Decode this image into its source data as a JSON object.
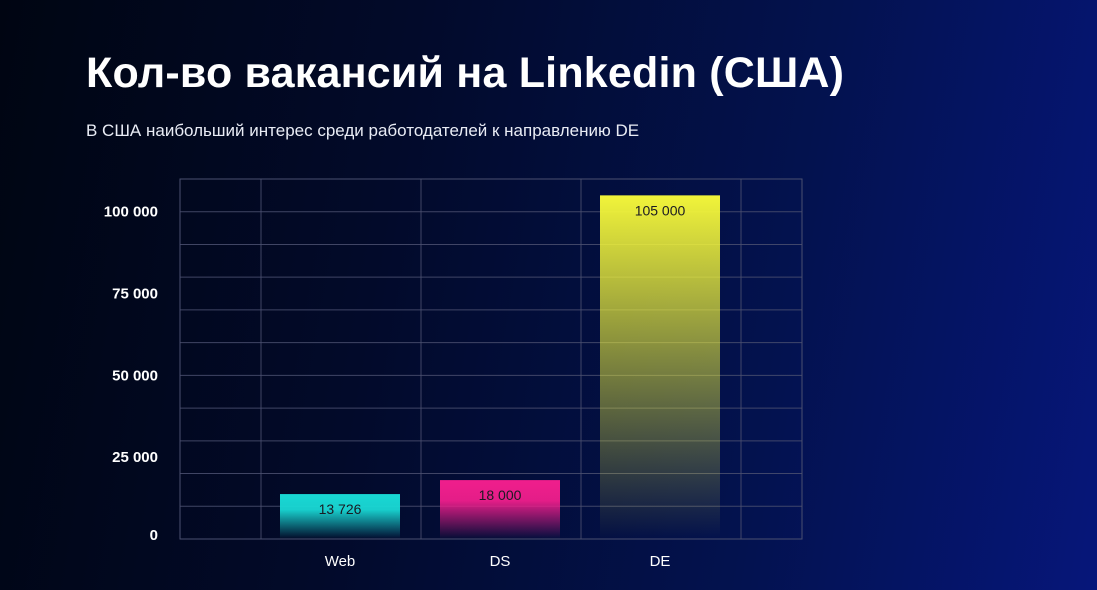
{
  "title": "Кол-во вакансий на Linkedin (США)",
  "subtitle": "В США наибольший интерес среди работодателей к направлению DE",
  "colors": {
    "Web": "#19d8d4",
    "DS": "#f01e8c",
    "DE": "#f1f43a",
    "grid": "#4b5070"
  },
  "chart_data": {
    "type": "bar",
    "categories": [
      "Web",
      "DS",
      "DE"
    ],
    "values": [
      13726,
      18000,
      105000
    ],
    "value_labels": [
      "13 726",
      "18 000",
      "105 000"
    ],
    "ylim": [
      0,
      110000
    ],
    "yticks": [
      0,
      25000,
      50000,
      75000,
      100000
    ],
    "ytick_labels": [
      "0",
      "25 000",
      "50 000",
      "75 000",
      "100 000"
    ],
    "grid": true,
    "legend": false
  }
}
